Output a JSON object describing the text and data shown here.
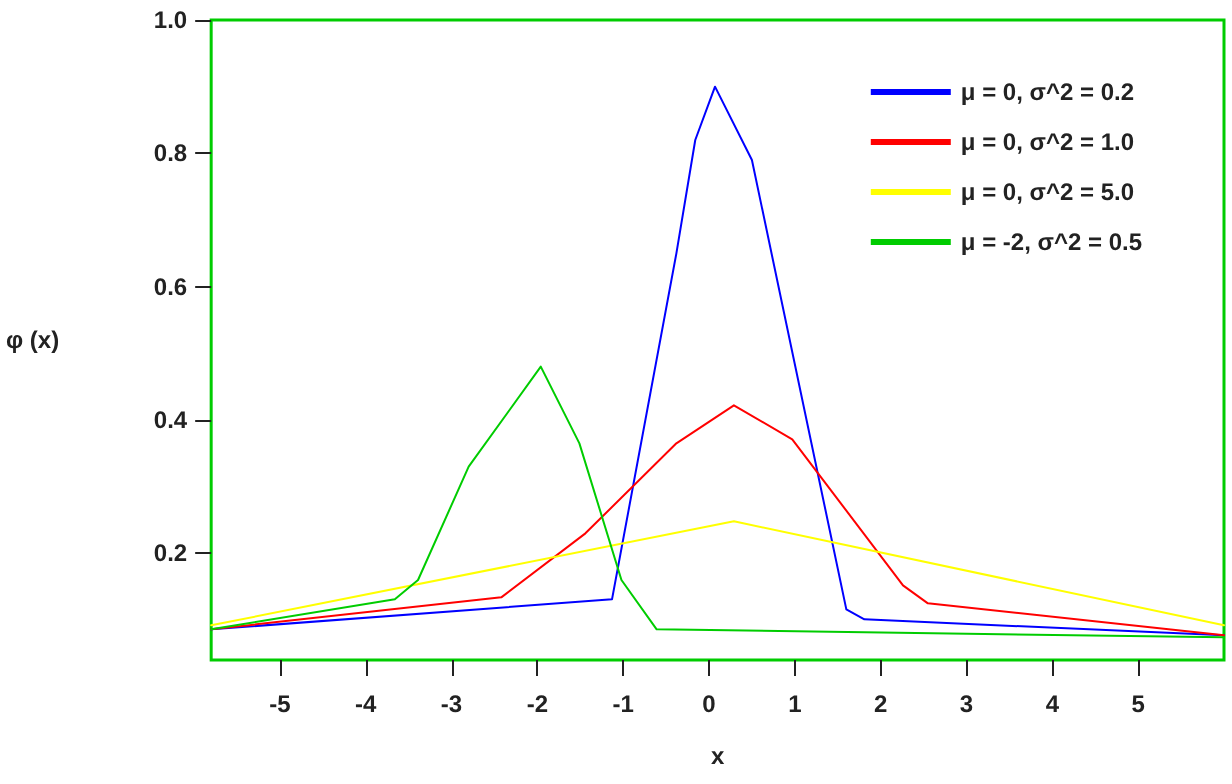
{
  "chart_data": {
    "type": "line",
    "xlabel": "x",
    "ylabel": "φ (x)",
    "xlim": [
      -5.8,
      6.0
    ],
    "xticks": [
      -5,
      -4,
      -3,
      -2,
      -1,
      0,
      1,
      2,
      3,
      4,
      5
    ],
    "ylim": [
      0.04,
      1.0
    ],
    "yticks": [
      0.2,
      0.4,
      0.6,
      0.8,
      {
        "value": 1.0,
        "label": "1.0"
      }
    ],
    "grid": false,
    "legend": "top right",
    "marker": "none",
    "line_style": "solid",
    "series": [
      {
        "name": "μ = 0, σ^2 = 0.2",
        "color": "#0000ff",
        "x": [
          -5.8,
          -1.13,
          -0.38,
          -0.16,
          0.07,
          0.5,
          1.6,
          1.81,
          6.0
        ],
        "values": [
          0.086,
          0.131,
          0.65,
          0.82,
          0.9,
          0.79,
          0.116,
          0.101,
          0.077
        ]
      },
      {
        "name": "μ = 0, σ^2 = 1.0",
        "color": "#ff0000",
        "x": [
          -5.8,
          -2.42,
          -1.44,
          -0.38,
          0.29,
          0.97,
          2.26,
          2.55,
          6.0
        ],
        "values": [
          0.086,
          0.134,
          0.23,
          0.365,
          0.422,
          0.371,
          0.152,
          0.125,
          0.077
        ]
      },
      {
        "name": "μ = 0, σ^2 = 5.0",
        "color": "#ffff00",
        "x": [
          -5.8,
          0.29,
          6.0
        ],
        "values": [
          0.092,
          0.248,
          0.092
        ]
      },
      {
        "name": "μ = -2, σ^2 = 0.5",
        "color": "#00cc00",
        "x": [
          -5.8,
          -3.66,
          -3.39,
          -2.8,
          -1.96,
          -1.51,
          -1.02,
          -0.61,
          6.0
        ],
        "values": [
          0.086,
          0.131,
          0.16,
          0.33,
          0.48,
          0.365,
          0.16,
          0.086,
          0.074
        ]
      }
    ]
  }
}
